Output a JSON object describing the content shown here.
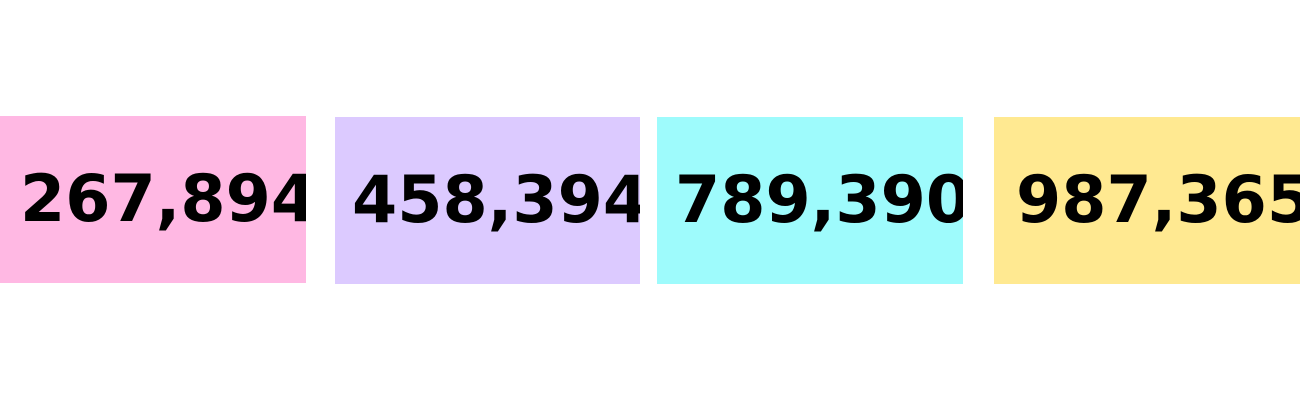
{
  "tiles": [
    {
      "value": "267,894",
      "color": "#FFB8E3"
    },
    {
      "value": "458,394",
      "color": "#DCCAFF"
    },
    {
      "value": "789,390",
      "color": "#9EFBFC"
    },
    {
      "value": "987,365",
      "color": "#FFE991"
    }
  ]
}
